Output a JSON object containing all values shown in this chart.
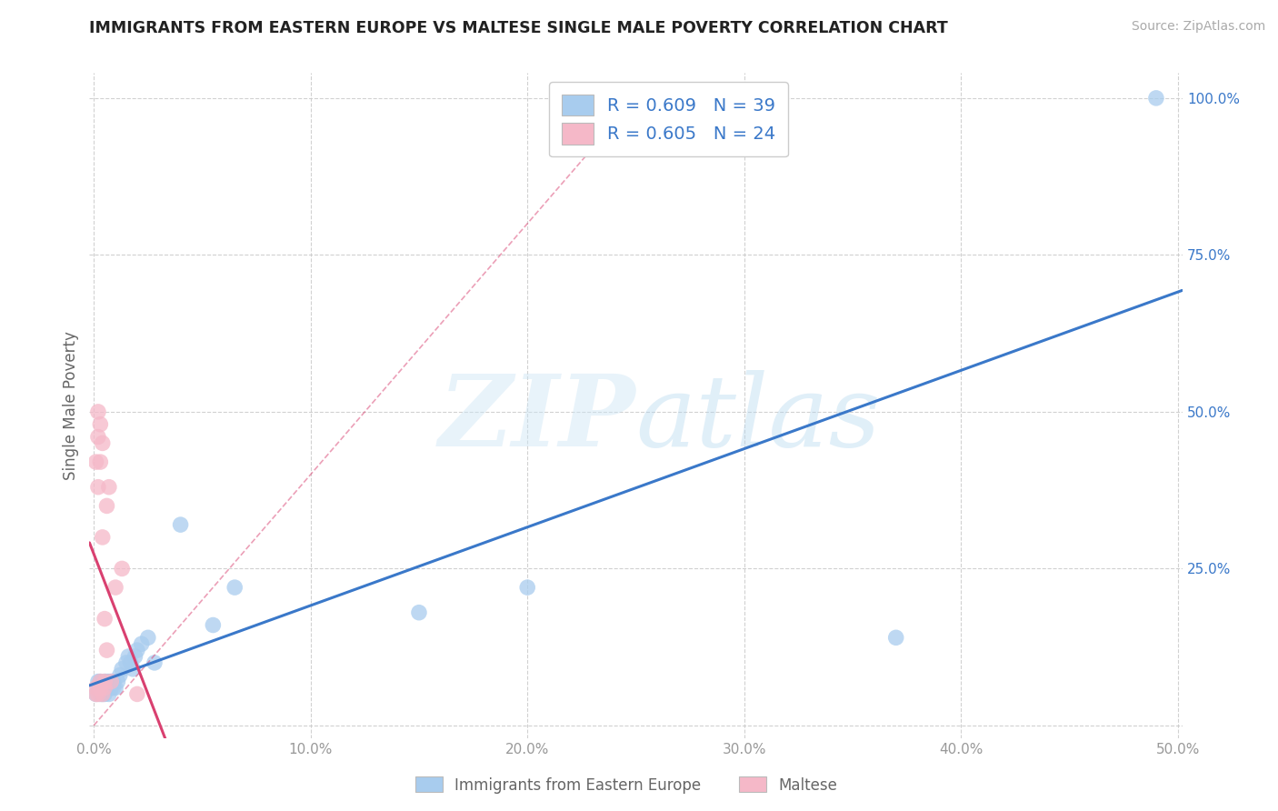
{
  "title": "IMMIGRANTS FROM EASTERN EUROPE VS MALTESE SINGLE MALE POVERTY CORRELATION CHART",
  "source": "Source: ZipAtlas.com",
  "ylabel": "Single Male Poverty",
  "xlim": [
    -0.002,
    0.502
  ],
  "ylim": [
    -0.02,
    1.04
  ],
  "xticks": [
    0.0,
    0.1,
    0.2,
    0.3,
    0.4,
    0.5
  ],
  "xticklabels": [
    "0.0%",
    "10.0%",
    "20.0%",
    "30.0%",
    "40.0%",
    "50.0%"
  ],
  "yticks": [
    0.0,
    0.25,
    0.5,
    0.75,
    1.0
  ],
  "yticklabels_right": [
    "",
    "25.0%",
    "50.0%",
    "75.0%",
    "100.0%"
  ],
  "blue_color": "#a8ccee",
  "pink_color": "#f5b8c8",
  "blue_line_color": "#3a78c9",
  "pink_line_color": "#d94070",
  "blue_R": "0.609",
  "blue_N": "39",
  "pink_R": "0.605",
  "pink_N": "24",
  "legend_label_blue": "Immigrants from Eastern Europe",
  "legend_label_pink": "Maltese",
  "background_color": "#ffffff",
  "grid_color": "#cccccc",
  "title_color": "#222222",
  "axis_label_color": "#666666",
  "R_text_color": "#3a78c9",
  "blue_scatter_x": [
    0.001,
    0.002,
    0.002,
    0.003,
    0.003,
    0.003,
    0.004,
    0.004,
    0.005,
    0.005,
    0.005,
    0.006,
    0.006,
    0.007,
    0.007,
    0.008,
    0.008,
    0.009,
    0.009,
    0.01,
    0.011,
    0.012,
    0.013,
    0.015,
    0.016,
    0.017,
    0.018,
    0.019,
    0.02,
    0.022,
    0.025,
    0.028,
    0.04,
    0.055,
    0.065,
    0.15,
    0.2,
    0.37,
    0.49
  ],
  "blue_scatter_y": [
    0.05,
    0.06,
    0.07,
    0.05,
    0.06,
    0.07,
    0.05,
    0.06,
    0.05,
    0.06,
    0.07,
    0.06,
    0.07,
    0.05,
    0.07,
    0.06,
    0.07,
    0.06,
    0.07,
    0.06,
    0.07,
    0.08,
    0.09,
    0.1,
    0.11,
    0.1,
    0.09,
    0.11,
    0.12,
    0.13,
    0.14,
    0.1,
    0.32,
    0.16,
    0.22,
    0.18,
    0.22,
    0.14,
    1.0
  ],
  "pink_scatter_x": [
    0.001,
    0.001,
    0.001,
    0.002,
    0.002,
    0.002,
    0.002,
    0.003,
    0.003,
    0.003,
    0.003,
    0.004,
    0.004,
    0.004,
    0.005,
    0.005,
    0.005,
    0.006,
    0.006,
    0.007,
    0.008,
    0.01,
    0.013,
    0.02
  ],
  "pink_scatter_y": [
    0.05,
    0.06,
    0.42,
    0.05,
    0.38,
    0.46,
    0.5,
    0.07,
    0.42,
    0.48,
    0.06,
    0.05,
    0.3,
    0.45,
    0.07,
    0.17,
    0.06,
    0.12,
    0.35,
    0.38,
    0.07,
    0.22,
    0.25,
    0.05
  ],
  "blue_line_x0": -0.002,
  "blue_line_x1": 0.502,
  "pink_line_x0": -0.002,
  "pink_line_x1": 0.502,
  "pink_dash_line_x0": 0.0,
  "pink_dash_line_x1": 0.502
}
